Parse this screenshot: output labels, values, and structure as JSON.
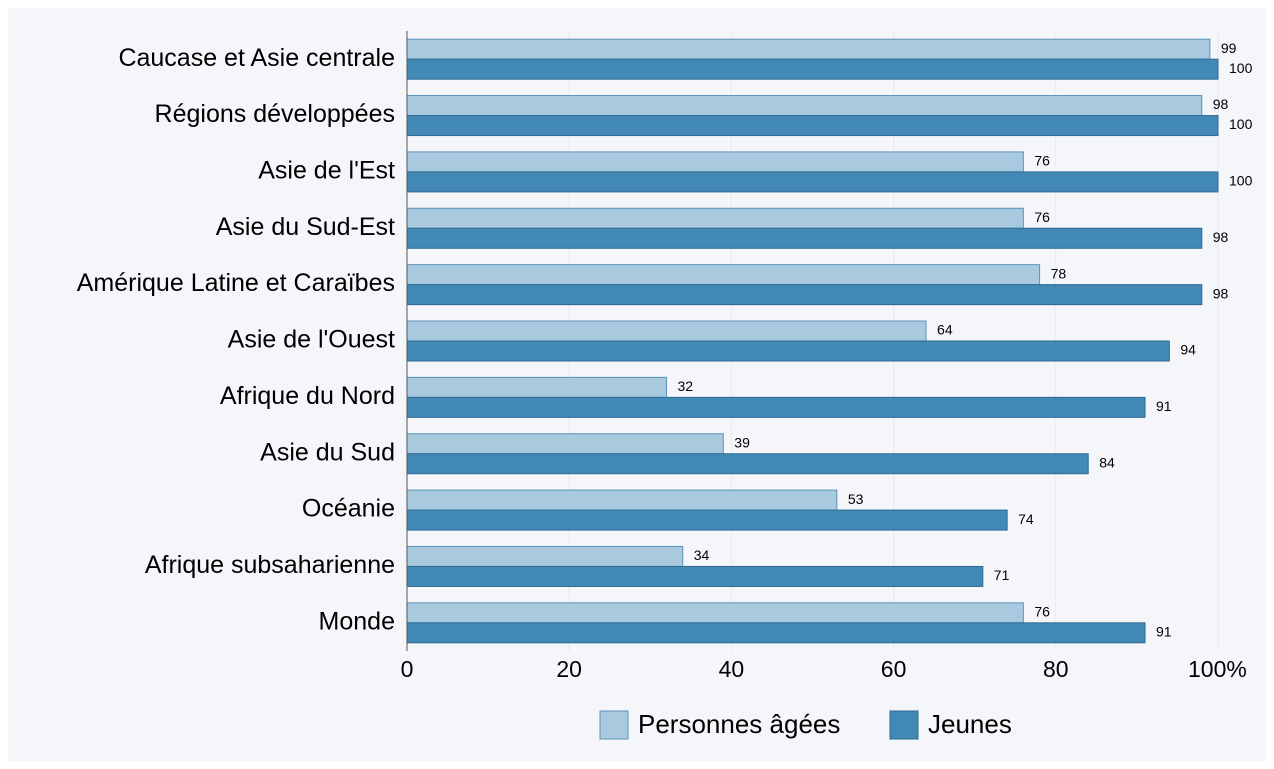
{
  "chart_data": {
    "type": "hbar",
    "categories": [
      "Caucase et Asie centrale",
      "Régions développées",
      "Asie de l'Est",
      "Asie du Sud-Est",
      "Amérique Latine et Caraïbes",
      "Asie de l'Ouest",
      "Afrique du Nord",
      "Asie du Sud",
      "Océanie",
      "Afrique subsaharienne",
      "Monde"
    ],
    "series": [
      {
        "name": "Personnes âgées",
        "color": "#a9c9de",
        "values": [
          99,
          98,
          76,
          76,
          78,
          64,
          32,
          39,
          53,
          34,
          76
        ]
      },
      {
        "name": "Jeunes",
        "color": "#4289b5",
        "values": [
          100,
          100,
          100,
          98,
          98,
          94,
          91,
          84,
          74,
          71,
          91
        ]
      }
    ],
    "xlim": [
      0,
      100
    ],
    "xticks": [
      0,
      20,
      40,
      60,
      80,
      {
        "value": 100,
        "label": "100%"
      }
    ],
    "grid": true,
    "legend": "bottom"
  }
}
